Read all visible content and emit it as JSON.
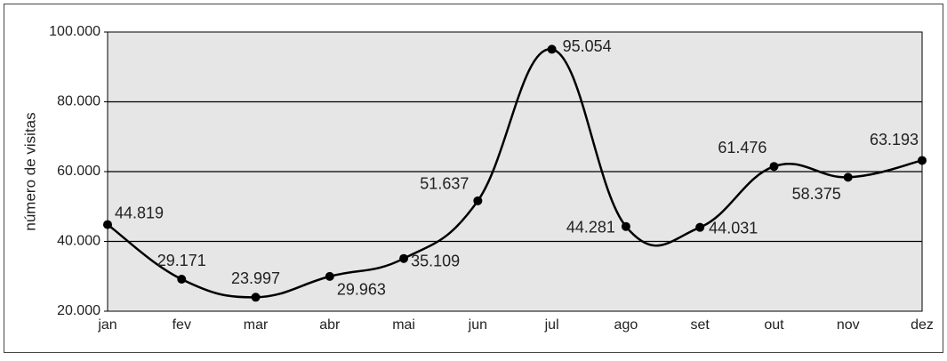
{
  "chart_data": {
    "type": "line",
    "y_label": "número de visitas",
    "categories": [
      "jan",
      "fev",
      "mar",
      "abr",
      "mai",
      "jun",
      "jul",
      "ago",
      "set",
      "out",
      "nov",
      "dez"
    ],
    "series": [
      {
        "color": "#000000",
        "values": [
          44819,
          29171,
          23997,
          29963,
          35109,
          51637,
          95054,
          44281,
          44031,
          61476,
          58375,
          63193
        ],
        "value_labels": [
          "44.819",
          "29.171",
          "23.997",
          "29.963",
          "35.109",
          "51.637",
          "95.054",
          "44.281",
          "44.031",
          "61.476",
          "58.375",
          "63.193"
        ]
      }
    ],
    "ylim": [
      20000,
      100000
    ],
    "yticks": [
      {
        "value": 20000,
        "label": "20.000"
      },
      {
        "value": 40000,
        "label": "40.000"
      },
      {
        "value": 60000,
        "label": "60.000"
      },
      {
        "value": 80000,
        "label": "80.000"
      },
      {
        "value": 100000,
        "label": "100.000"
      }
    ],
    "grid": true
  }
}
